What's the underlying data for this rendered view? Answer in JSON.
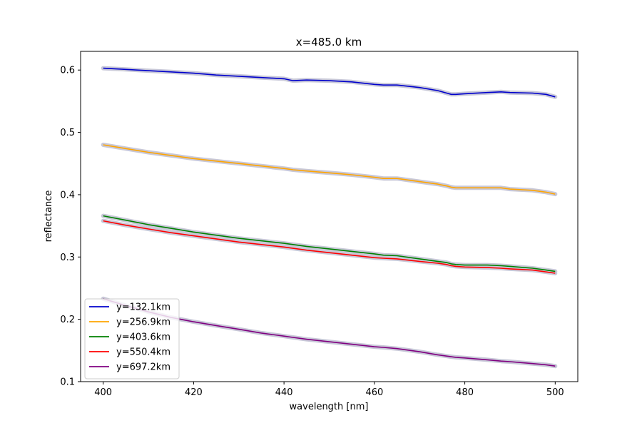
{
  "chart_data": {
    "type": "line",
    "title": "x=485.0 km",
    "xlabel": "wavelength [nm]",
    "ylabel": "reflectance",
    "xlim": [
      395,
      505
    ],
    "ylim": [
      0.1,
      0.63
    ],
    "x_ticks": [
      400,
      420,
      440,
      460,
      480,
      500
    ],
    "x_tick_labels": [
      "400",
      "420",
      "440",
      "460",
      "480",
      "500"
    ],
    "y_ticks": [
      0.1,
      0.2,
      0.3,
      0.4,
      0.5,
      0.6
    ],
    "y_tick_labels": [
      "0.1",
      "0.2",
      "0.3",
      "0.4",
      "0.5",
      "0.6"
    ],
    "grid": false,
    "legend_position": "lower-left",
    "uncertainty_band_color": "#c8c8d8",
    "x": [
      400,
      405,
      410,
      415,
      420,
      425,
      430,
      435,
      440,
      442,
      445,
      450,
      455,
      460,
      462,
      465,
      470,
      474,
      476,
      477,
      478,
      480,
      485,
      488,
      490,
      495,
      498,
      500
    ],
    "series": [
      {
        "name": "y=132.1km",
        "color": "#0000cc",
        "values": [
          0.603,
          0.601,
          0.599,
          0.597,
          0.595,
          0.592,
          0.59,
          0.588,
          0.586,
          0.583,
          0.584,
          0.583,
          0.581,
          0.577,
          0.576,
          0.576,
          0.572,
          0.567,
          0.563,
          0.561,
          0.561,
          0.562,
          0.564,
          0.565,
          0.564,
          0.563,
          0.561,
          0.557
        ]
      },
      {
        "name": "y=256.9km",
        "color": "#ffa500",
        "values": [
          0.48,
          0.474,
          0.468,
          0.463,
          0.458,
          0.454,
          0.45,
          0.446,
          0.442,
          0.44,
          0.438,
          0.435,
          0.432,
          0.428,
          0.426,
          0.426,
          0.421,
          0.417,
          0.414,
          0.412,
          0.411,
          0.411,
          0.411,
          0.411,
          0.409,
          0.407,
          0.404,
          0.401
        ]
      },
      {
        "name": "y=403.6km",
        "color": "#008000",
        "values": [
          0.366,
          0.359,
          0.352,
          0.346,
          0.34,
          0.335,
          0.33,
          0.326,
          0.322,
          0.32,
          0.317,
          0.313,
          0.309,
          0.305,
          0.303,
          0.302,
          0.297,
          0.293,
          0.291,
          0.289,
          0.288,
          0.287,
          0.287,
          0.286,
          0.285,
          0.282,
          0.279,
          0.277
        ]
      },
      {
        "name": "y=550.4km",
        "color": "#ff0000",
        "values": [
          0.358,
          0.351,
          0.345,
          0.339,
          0.334,
          0.329,
          0.324,
          0.32,
          0.316,
          0.314,
          0.311,
          0.307,
          0.303,
          0.299,
          0.298,
          0.297,
          0.293,
          0.29,
          0.288,
          0.286,
          0.285,
          0.284,
          0.283,
          0.282,
          0.281,
          0.279,
          0.276,
          0.274
        ]
      },
      {
        "name": "y=697.2km",
        "color": "#800080",
        "values": [
          0.233,
          0.222,
          0.212,
          0.203,
          0.196,
          0.19,
          0.184,
          0.178,
          0.173,
          0.171,
          0.168,
          0.164,
          0.16,
          0.156,
          0.155,
          0.153,
          0.148,
          0.143,
          0.141,
          0.14,
          0.139,
          0.138,
          0.135,
          0.133,
          0.132,
          0.129,
          0.127,
          0.125
        ]
      }
    ]
  }
}
